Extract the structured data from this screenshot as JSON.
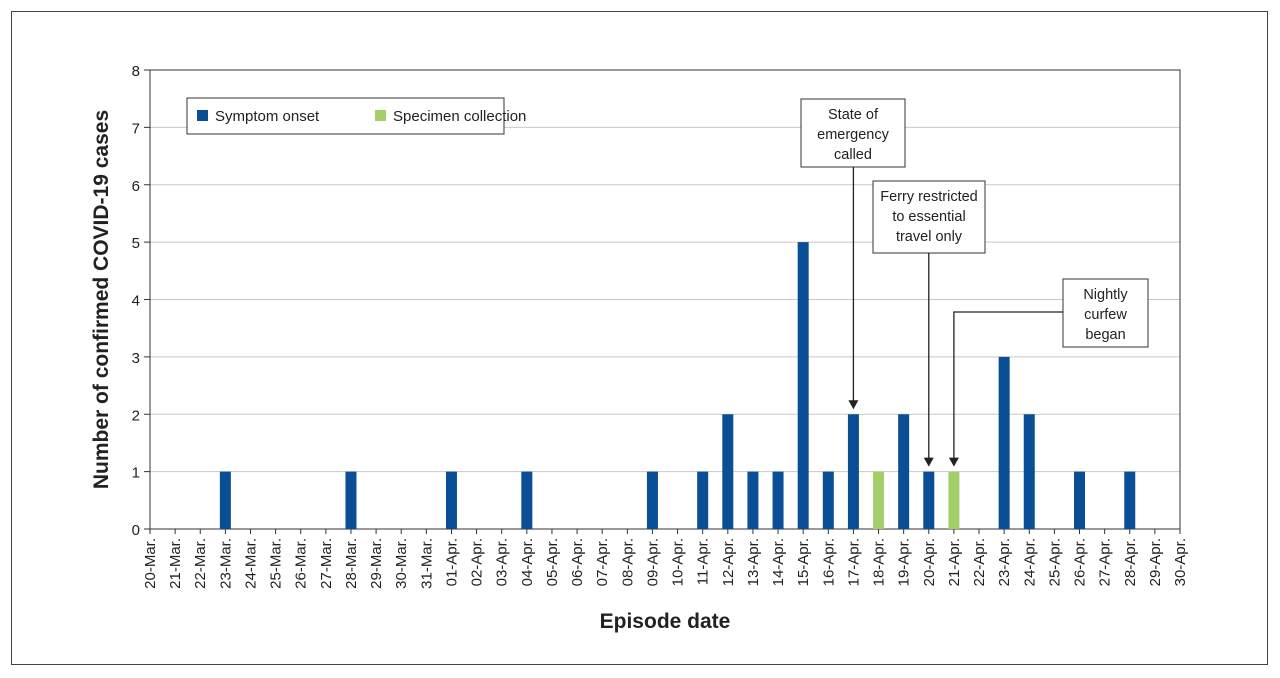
{
  "chart_data": {
    "type": "bar",
    "title": "",
    "xlabel": "Episode date",
    "ylabel": "Number of confirmed COVID-19 cases",
    "ylim": [
      0,
      8
    ],
    "yticks": [
      "0",
      "1",
      "2",
      "3",
      "4",
      "5",
      "6",
      "7",
      "8"
    ],
    "grid": true,
    "legend_position": "top-left",
    "categories": [
      "20-Mar.",
      "21-Mar.",
      "22-Mar.",
      "23-Mar.",
      "24-Mar.",
      "25-Mar.",
      "26-Mar.",
      "27-Mar.",
      "28-Mar.",
      "29-Mar.",
      "30-Mar.",
      "31-Mar.",
      "01-Apr.",
      "02-Apr.",
      "03-Apr.",
      "04-Apr.",
      "05-Apr.",
      "06-Apr.",
      "07-Apr.",
      "08-Apr.",
      "09-Apr.",
      "10-Apr.",
      "11-Apr.",
      "12-Apr.",
      "13-Apr.",
      "14-Apr.",
      "15-Apr.",
      "16-Apr.",
      "17-Apr.",
      "18-Apr.",
      "19-Apr.",
      "20-Apr.",
      "21-Apr.",
      "22-Apr.",
      "23-Apr.",
      "24-Apr.",
      "25-Apr.",
      "26-Apr.",
      "27-Apr.",
      "28-Apr.",
      "29-Apr.",
      "30-Apr."
    ],
    "series": [
      {
        "name": "Symptom onset",
        "color": "#0a4f96",
        "values": [
          0,
          0,
          0,
          1,
          0,
          0,
          0,
          0,
          1,
          0,
          0,
          0,
          1,
          0,
          0,
          1,
          0,
          0,
          0,
          0,
          1,
          0,
          1,
          2,
          1,
          1,
          5,
          1,
          2,
          0,
          2,
          1,
          0,
          0,
          3,
          2,
          0,
          1,
          0,
          1,
          0,
          0
        ]
      },
      {
        "name": "Specimen collection",
        "color": "#a3cf6a",
        "values": [
          0,
          0,
          0,
          0,
          0,
          0,
          0,
          0,
          0,
          0,
          0,
          0,
          0,
          0,
          0,
          0,
          0,
          0,
          0,
          0,
          0,
          0,
          0,
          0,
          0,
          0,
          0,
          0,
          0,
          1,
          0,
          0,
          1,
          0,
          0,
          0,
          0,
          0,
          0,
          0,
          0,
          0
        ]
      }
    ],
    "annotations": [
      {
        "lines": [
          "State of",
          "emergency",
          "called"
        ],
        "target": "17-Apr."
      },
      {
        "lines": [
          "Ferry restricted",
          "to essential",
          "travel only"
        ],
        "target": "20-Apr."
      },
      {
        "lines": [
          "Nightly",
          "curfew",
          "began"
        ],
        "target": "21-Apr."
      }
    ]
  }
}
